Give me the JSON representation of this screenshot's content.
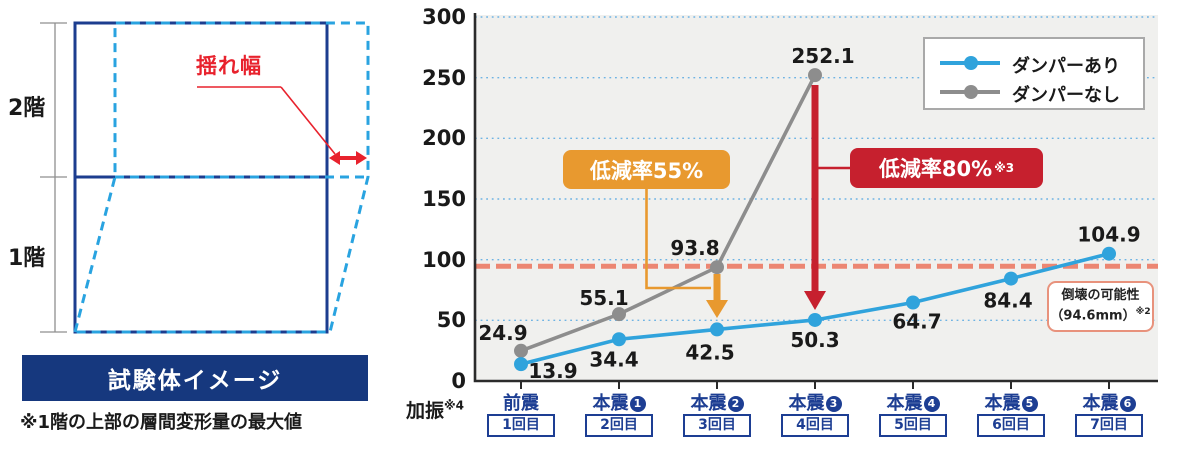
{
  "diagram": {
    "floor2_label": "2階",
    "floor1_label": "1階",
    "sway_label": "揺れ幅",
    "caption": "試験体イメージ",
    "footnote": "※1階の上部の層間変形量の最大値",
    "colors": {
      "solid_frame": "#1c3d8f",
      "deformed_dashed": "#29a3e0",
      "sway_red": "#e8222d",
      "banner": "#16387e"
    }
  },
  "chart_data": {
    "type": "line",
    "title": "",
    "x_axis_label": "加振",
    "x_axis_label_sup": "※4",
    "categories": [
      {
        "label": "前震",
        "circle": "",
        "round": "1回目"
      },
      {
        "label": "本震",
        "circle": "1",
        "round": "2回目"
      },
      {
        "label": "本震",
        "circle": "2",
        "round": "3回目"
      },
      {
        "label": "本震",
        "circle": "3",
        "round": "4回目"
      },
      {
        "label": "本震",
        "circle": "4",
        "round": "5回目"
      },
      {
        "label": "本震",
        "circle": "5",
        "round": "6回目"
      },
      {
        "label": "本震",
        "circle": "6",
        "round": "7回目"
      }
    ],
    "series": [
      {
        "name": "ダンパーあり",
        "color": "#30a3dc",
        "values": [
          13.9,
          34.4,
          42.5,
          50.3,
          64.7,
          84.4,
          104.9
        ]
      },
      {
        "name": "ダンパーなし",
        "color": "#8d8d8d",
        "values": [
          24.9,
          55.1,
          93.8,
          252.1
        ]
      }
    ],
    "ylim": [
      0,
      300
    ],
    "yticks": [
      0,
      50,
      100,
      150,
      200,
      250,
      300
    ],
    "grid": "horizontal dotted blue",
    "legend_position": "top-right",
    "threshold_line": {
      "value": 94.6,
      "color": "#ec8672",
      "style": "dashed"
    },
    "annotations": {
      "reduction55": {
        "text": "低減率55%",
        "color": "#e8992f"
      },
      "reduction80": {
        "text": "低減率80%",
        "sup": "※3",
        "color": "#c6202e"
      },
      "collapse": {
        "line1": "倒壊の可能性",
        "line2": "（94.6mm）",
        "sup": "※2"
      }
    }
  }
}
